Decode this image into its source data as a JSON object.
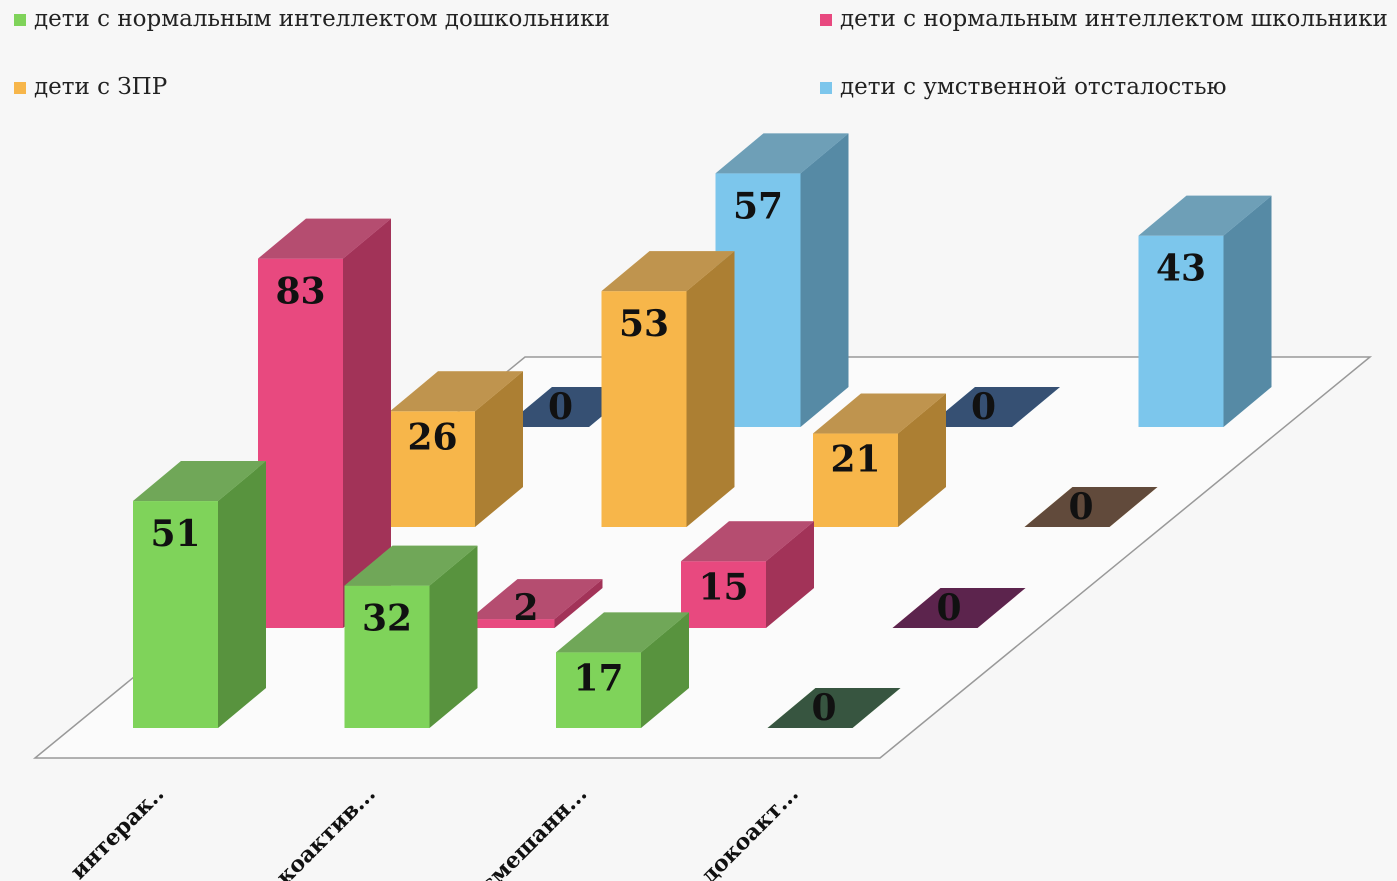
{
  "chart_data": {
    "type": "bar3d",
    "categories": [
      "интерак..",
      "коактив...",
      "смешанн...",
      "докоакт..."
    ],
    "series": [
      {
        "name": "дети с нормальным интеллектом дошкольники",
        "color": "#7fd35a",
        "values": [
          51,
          32,
          17,
          0
        ]
      },
      {
        "name": "дети с нормальным интеллектом школьники",
        "color": "#e8497f",
        "values": [
          83,
          2,
          15,
          0
        ]
      },
      {
        "name": "дети с ЗПР",
        "color": "#f7b64a",
        "values": [
          26,
          53,
          21,
          0
        ]
      },
      {
        "name": "дети с умственной отсталостью",
        "color": "#7cc6ec",
        "values": [
          0,
          57,
          0,
          43
        ]
      }
    ]
  }
}
